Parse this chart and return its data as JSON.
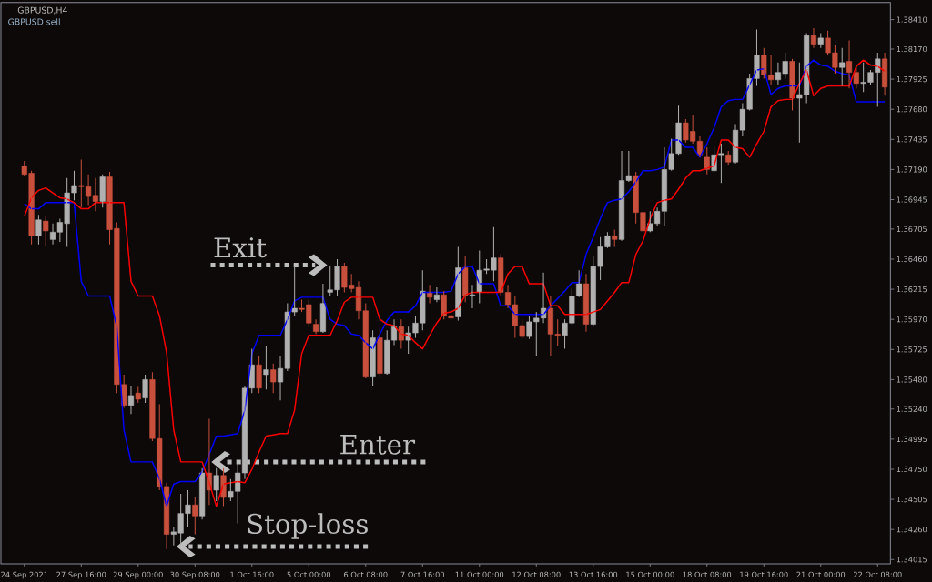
{
  "chart_data": {
    "type": "candlestick",
    "title": "GBPUSD,H4",
    "subtitle": "GBPUSD sell",
    "categories": [
      "24 Sep 2021",
      null,
      null,
      null,
      null,
      null,
      null,
      null,
      "27 Sep 16:00",
      null,
      null,
      null,
      null,
      null,
      null,
      null,
      "29 Sep 00:00",
      null,
      null,
      null,
      null,
      null,
      null,
      null,
      "30 Sep 08:00",
      null,
      null,
      null,
      null,
      null,
      null,
      null,
      "1 Oct 16:00",
      null,
      null,
      null,
      null,
      null,
      null,
      null,
      "5 Oct 00:00",
      null,
      null,
      null,
      null,
      null,
      null,
      null,
      "6 Oct 08:00",
      null,
      null,
      null,
      null,
      null,
      null,
      null,
      "7 Oct 16:00",
      null,
      null,
      null,
      null,
      null,
      null,
      null,
      "11 Oct 00:00",
      null,
      null,
      null,
      null,
      null,
      null,
      null,
      "12 Oct 08:00",
      null,
      null,
      null,
      null,
      null,
      null,
      null,
      "13 Oct 16:00",
      null,
      null,
      null,
      null,
      null,
      null,
      null,
      "15 Oct 00:00",
      null,
      null,
      null,
      null,
      null,
      null,
      null,
      "18 Oct 08:00",
      null,
      null,
      null,
      null,
      null,
      null,
      null,
      "19 Oct 16:00",
      null,
      null,
      null,
      null,
      null,
      null,
      null,
      "21 Oct 00:00",
      null,
      null,
      null,
      null,
      null,
      null,
      null,
      "22 Oct 08:00",
      null
    ],
    "ohlc": [
      [
        1.3722,
        1.3726,
        1.3714,
        1.3715
      ],
      [
        1.3716,
        1.3718,
        1.3658,
        1.3665
      ],
      [
        1.3665,
        1.3682,
        1.3658,
        1.3678
      ],
      [
        1.3677,
        1.3681,
        1.3657,
        1.3669
      ],
      [
        1.3662,
        1.3675,
        1.3658,
        1.3668
      ],
      [
        1.3668,
        1.3679,
        1.366,
        1.3676
      ],
      [
        1.3675,
        1.3712,
        1.3656,
        1.37
      ],
      [
        1.37,
        1.3718,
        1.3694,
        1.3706
      ],
      [
        1.3706,
        1.3727,
        1.3688,
        1.3705
      ],
      [
        1.3705,
        1.3715,
        1.369,
        1.3697
      ],
      [
        1.3698,
        1.3712,
        1.3685,
        1.3693
      ],
      [
        1.3693,
        1.3715,
        1.3688,
        1.3713
      ],
      [
        1.3713,
        1.3717,
        1.3658,
        1.367
      ],
      [
        1.3671,
        1.3676,
        1.3537,
        1.3544
      ],
      [
        1.3544,
        1.3552,
        1.3525,
        1.3527
      ],
      [
        1.3527,
        1.3543,
        1.352,
        1.3535
      ],
      [
        1.3537,
        1.3542,
        1.3529,
        1.3532
      ],
      [
        1.3533,
        1.3552,
        1.3529,
        1.3548
      ],
      [
        1.3548,
        1.3554,
        1.3498,
        1.35
      ],
      [
        1.35,
        1.3528,
        1.3458,
        1.3461
      ],
      [
        1.3461,
        1.3464,
        1.341,
        1.3422
      ],
      [
        1.3422,
        1.3428,
        1.3413,
        1.3424
      ],
      [
        1.3423,
        1.3455,
        1.3413,
        1.3439
      ],
      [
        1.3439,
        1.3458,
        1.3428,
        1.3446
      ],
      [
        1.3446,
        1.3452,
        1.3422,
        1.3437
      ],
      [
        1.3437,
        1.3476,
        1.3434,
        1.3472
      ],
      [
        1.3472,
        1.3516,
        1.3446,
        1.3458
      ],
      [
        1.3458,
        1.3476,
        1.3449,
        1.347
      ],
      [
        1.347,
        1.3476,
        1.3445,
        1.3452
      ],
      [
        1.3452,
        1.3467,
        1.3449,
        1.3457
      ],
      [
        1.3457,
        1.348,
        1.3431,
        1.3472
      ],
      [
        1.3472,
        1.3543,
        1.3467,
        1.3541
      ],
      [
        1.3541,
        1.3573,
        1.3537,
        1.356
      ],
      [
        1.356,
        1.3567,
        1.3537,
        1.3541
      ],
      [
        1.3552,
        1.3575,
        1.354,
        1.3556
      ],
      [
        1.3556,
        1.3561,
        1.3537,
        1.3546
      ],
      [
        1.3546,
        1.3567,
        1.3531,
        1.3557
      ],
      [
        1.3557,
        1.361,
        1.3555,
        1.3603
      ],
      [
        1.3603,
        1.364,
        1.36,
        1.3606
      ],
      [
        1.3606,
        1.3613,
        1.3603,
        1.3605
      ],
      [
        1.3609,
        1.3613,
        1.3591,
        1.3594
      ],
      [
        1.3593,
        1.3597,
        1.3585,
        1.3587
      ],
      [
        1.3587,
        1.3626,
        1.3586,
        1.361
      ],
      [
        1.3619,
        1.364,
        1.3616,
        1.3621
      ],
      [
        1.3621,
        1.3646,
        1.3616,
        1.364
      ],
      [
        1.364,
        1.3643,
        1.3619,
        1.3623
      ],
      [
        1.3625,
        1.3634,
        1.3619,
        1.3622
      ],
      [
        1.3623,
        1.3628,
        1.3597,
        1.3604
      ],
      [
        1.3604,
        1.361,
        1.3549,
        1.355
      ],
      [
        1.355,
        1.3588,
        1.3543,
        1.3582
      ],
      [
        1.3582,
        1.3591,
        1.3549,
        1.3553
      ],
      [
        1.3553,
        1.3588,
        1.3552,
        1.358
      ],
      [
        1.358,
        1.3597,
        1.3576,
        1.3591
      ],
      [
        1.3591,
        1.3597,
        1.3573,
        1.358
      ],
      [
        1.358,
        1.3591,
        1.3569,
        1.3586
      ],
      [
        1.3586,
        1.36,
        1.3582,
        1.3594
      ],
      [
        1.3594,
        1.3637,
        1.3588,
        1.362
      ],
      [
        1.3619,
        1.3625,
        1.361,
        1.3615
      ],
      [
        1.3613,
        1.3623,
        1.3611,
        1.3617
      ],
      [
        1.3617,
        1.362,
        1.3597,
        1.36
      ],
      [
        1.36,
        1.3616,
        1.3591,
        1.3598
      ],
      [
        1.3599,
        1.3656,
        1.3596,
        1.3639
      ],
      [
        1.3639,
        1.3649,
        1.3611,
        1.3616
      ],
      [
        1.3616,
        1.3625,
        1.3606,
        1.3617
      ],
      [
        1.3619,
        1.3653,
        1.361,
        1.3637
      ],
      [
        1.3637,
        1.3646,
        1.3634,
        1.3638
      ],
      [
        1.3637,
        1.3672,
        1.3628,
        1.3647
      ],
      [
        1.3647,
        1.365,
        1.3616,
        1.3619
      ],
      [
        1.3619,
        1.3625,
        1.3606,
        1.3609
      ],
      [
        1.3609,
        1.3616,
        1.3582,
        1.3592
      ],
      [
        1.3592,
        1.3597,
        1.3581,
        1.3583
      ],
      [
        1.3583,
        1.36,
        1.3581,
        1.3595
      ],
      [
        1.3595,
        1.3603,
        1.3567,
        1.3598
      ],
      [
        1.3598,
        1.3635,
        1.3594,
        1.3606
      ],
      [
        1.3606,
        1.3616,
        1.3567,
        1.3585
      ],
      [
        1.3585,
        1.3597,
        1.3575,
        1.3584
      ],
      [
        1.3584,
        1.3597,
        1.3573,
        1.3594
      ],
      [
        1.3594,
        1.3622,
        1.3593,
        1.3616
      ],
      [
        1.3616,
        1.3637,
        1.3615,
        1.3626
      ],
      [
        1.3626,
        1.3634,
        1.3587,
        1.3593
      ],
      [
        1.3593,
        1.3649,
        1.3591,
        1.364
      ],
      [
        1.364,
        1.3664,
        1.3629,
        1.3656
      ],
      [
        1.3656,
        1.3668,
        1.3655,
        1.3665
      ],
      [
        1.3665,
        1.367,
        1.3656,
        1.3662
      ],
      [
        1.3662,
        1.3734,
        1.3661,
        1.371
      ],
      [
        1.371,
        1.3734,
        1.3709,
        1.3714
      ],
      [
        1.3714,
        1.3717,
        1.3675,
        1.3684
      ],
      [
        1.3684,
        1.3687,
        1.3667,
        1.3669
      ],
      [
        1.3669,
        1.3685,
        1.3668,
        1.3675
      ],
      [
        1.3675,
        1.3688,
        1.3673,
        1.3685
      ],
      [
        1.3685,
        1.3737,
        1.3673,
        1.3719
      ],
      [
        1.3719,
        1.3744,
        1.3718,
        1.3732
      ],
      [
        1.3732,
        1.3771,
        1.3731,
        1.3757
      ],
      [
        1.3757,
        1.376,
        1.3741,
        1.3743
      ],
      [
        1.375,
        1.3763,
        1.374,
        1.3742
      ],
      [
        1.3742,
        1.3746,
        1.3729,
        1.3731
      ],
      [
        1.3729,
        1.3737,
        1.3715,
        1.3719
      ],
      [
        1.3718,
        1.3738,
        1.3717,
        1.3731
      ],
      [
        1.3731,
        1.374,
        1.3708,
        1.3732
      ],
      [
        1.3731,
        1.3734,
        1.3723,
        1.3725
      ],
      [
        1.3725,
        1.3756,
        1.3724,
        1.3751
      ],
      [
        1.3751,
        1.3773,
        1.3746,
        1.3768
      ],
      [
        1.3768,
        1.3797,
        1.3767,
        1.3793
      ],
      [
        1.3793,
        1.3833,
        1.3787,
        1.3812
      ],
      [
        1.3812,
        1.3818,
        1.3793,
        1.3796
      ],
      [
        1.3796,
        1.3812,
        1.3788,
        1.3792
      ],
      [
        1.3792,
        1.3806,
        1.3788,
        1.3798
      ],
      [
        1.3797,
        1.3814,
        1.3793,
        1.3807
      ],
      [
        1.3807,
        1.3809,
        1.3767,
        1.3777
      ],
      [
        1.3777,
        1.3806,
        1.3741,
        1.378
      ],
      [
        1.378,
        1.383,
        1.3773,
        1.3828
      ],
      [
        1.3828,
        1.3834,
        1.3818,
        1.3821
      ],
      [
        1.3821,
        1.383,
        1.3818,
        1.3826
      ],
      [
        1.3826,
        1.3832,
        1.3812,
        1.3814
      ],
      [
        1.3814,
        1.382,
        1.3797,
        1.3802
      ],
      [
        1.3802,
        1.3818,
        1.3787,
        1.3806
      ],
      [
        1.3807,
        1.3824,
        1.3785,
        1.3798
      ],
      [
        1.3798,
        1.3803,
        1.3785,
        1.3789
      ],
      [
        1.3789,
        1.3806,
        1.3782,
        1.379
      ],
      [
        1.379,
        1.38,
        1.3788,
        1.3798
      ],
      [
        1.3798,
        1.3814,
        1.377,
        1.3809
      ],
      [
        1.3809,
        1.3814,
        1.3779,
        1.3786
      ]
    ],
    "colors": [
      "#c8503c",
      "#c8503c",
      "#b0b0b0",
      "#c8503c",
      "#b0b0b0",
      "#b0b0b0",
      "#b0b0b0",
      "#b0b0b0",
      "#c8503c",
      "#c8503c",
      "#c8503c",
      "#b0b0b0",
      "#c8503c",
      "#c8503c",
      "#c8503c",
      "#b0b0b0",
      "#c8503c",
      "#b0b0b0",
      "#c8503c",
      "#c8503c",
      "#c8503c",
      "#b0b0b0",
      "#b0b0b0",
      "#b0b0b0",
      "#c8503c",
      "#b0b0b0",
      "#c8503c",
      "#b0b0b0",
      "#c8503c",
      "#b0b0b0",
      "#b0b0b0",
      "#b0b0b0",
      "#b0b0b0",
      "#c8503c",
      "#b0b0b0",
      "#c8503c",
      "#b0b0b0",
      "#b0b0b0",
      "#b0b0b0",
      "#c8503c",
      "#c8503c",
      "#c8503c",
      "#b0b0b0",
      "#b0b0b0",
      "#b0b0b0",
      "#c8503c",
      "#c8503c",
      "#c8503c",
      "#c8503c",
      "#b0b0b0",
      "#c8503c",
      "#b0b0b0",
      "#b0b0b0",
      "#c8503c",
      "#b0b0b0",
      "#b0b0b0",
      "#b0b0b0",
      "#c8503c",
      "#b0b0b0",
      "#c8503c",
      "#c8503c",
      "#b0b0b0",
      "#c8503c",
      "#b0b0b0",
      "#b0b0b0",
      "#b0b0b0",
      "#b0b0b0",
      "#c8503c",
      "#c8503c",
      "#c8503c",
      "#c8503c",
      "#b0b0b0",
      "#b0b0b0",
      "#b0b0b0",
      "#c8503c",
      "#c8503c",
      "#b0b0b0",
      "#b0b0b0",
      "#b0b0b0",
      "#c8503c",
      "#b0b0b0",
      "#b0b0b0",
      "#b0b0b0",
      "#c8503c",
      "#b0b0b0",
      "#b0b0b0",
      "#c8503c",
      "#c8503c",
      "#b0b0b0",
      "#b0b0b0",
      "#b0b0b0",
      "#b0b0b0",
      "#b0b0b0",
      "#c8503c",
      "#c8503c",
      "#c8503c",
      "#c8503c",
      "#b0b0b0",
      "#b0b0b0",
      "#c8503c",
      "#b0b0b0",
      "#b0b0b0",
      "#b0b0b0",
      "#b0b0b0",
      "#c8503c",
      "#c8503c",
      "#b0b0b0",
      "#b0b0b0",
      "#c8503c",
      "#b0b0b0",
      "#b0b0b0",
      "#c8503c",
      "#b0b0b0",
      "#c8503c",
      "#c8503c",
      "#b0b0b0",
      "#c8503c",
      "#c8503c",
      "#b0b0b0",
      "#b0b0b0",
      "#b0b0b0",
      "#c8503c"
    ],
    "series": [
      {
        "type": "line",
        "color": "#0000ff",
        "values": [
          1.3691,
          1.3687,
          1.3687,
          1.3692,
          1.3692,
          1.3692,
          1.3692,
          1.3692,
          1.3628,
          1.3616,
          1.3616,
          1.3616,
          1.3616,
          1.3591,
          1.3507,
          1.3481,
          1.3481,
          1.3481,
          1.3481,
          1.3467,
          1.3445,
          1.3463,
          1.3465,
          1.3465,
          1.3465,
          1.3473,
          1.3487,
          1.3502,
          1.3502,
          1.3503,
          1.3504,
          1.3523,
          1.3569,
          1.3584,
          1.3584,
          1.3584,
          1.3584,
          1.3597,
          1.3612,
          1.3615,
          1.3615,
          1.3615,
          1.3615,
          1.3597,
          1.3593,
          1.3592,
          1.3585,
          1.3584,
          1.3578,
          1.3573,
          1.3585,
          1.3596,
          1.3603,
          1.3603,
          1.3603,
          1.3608,
          1.3619,
          1.3619,
          1.3619,
          1.3619,
          1.362,
          1.3634,
          1.364,
          1.364,
          1.3626,
          1.3626,
          1.3626,
          1.3608,
          1.3608,
          1.3601,
          1.3601,
          1.3601,
          1.3601,
          1.3601,
          1.3608,
          1.3614,
          1.362,
          1.3627,
          1.3627,
          1.365,
          1.3664,
          1.3679,
          1.3692,
          1.3694,
          1.3695,
          1.3701,
          1.3709,
          1.3718,
          1.3718,
          1.3719,
          1.3721,
          1.3743,
          1.3743,
          1.3737,
          1.3737,
          1.3729,
          1.374,
          1.3753,
          1.377,
          1.3775,
          1.3776,
          1.3776,
          1.3788,
          1.38,
          1.3801,
          1.378,
          1.3785,
          1.3787,
          1.3787,
          1.3787,
          1.3803,
          1.3808,
          1.3804,
          1.3803,
          1.3799,
          1.3797,
          1.3796,
          1.3774,
          1.3774,
          1.3774,
          1.3774,
          1.3774
        ]
      },
      {
        "type": "line",
        "color": "#ff0000",
        "values": [
          1.3681,
          1.3696,
          1.3702,
          1.3704,
          1.37,
          1.3696,
          1.3695,
          1.3692,
          1.3687,
          1.3687,
          1.3692,
          1.3692,
          1.3692,
          1.3692,
          1.3692,
          1.3628,
          1.3616,
          1.3616,
          1.3616,
          1.36,
          1.357,
          1.3507,
          1.3481,
          1.3481,
          1.3481,
          1.3481,
          1.3464,
          1.3445,
          1.3463,
          1.3464,
          1.3465,
          1.3464,
          1.3475,
          1.3489,
          1.3502,
          1.3503,
          1.3504,
          1.3504,
          1.3523,
          1.3569,
          1.3584,
          1.3584,
          1.3584,
          1.3584,
          1.3596,
          1.3611,
          1.3615,
          1.3615,
          1.3615,
          1.3615,
          1.3597,
          1.3593,
          1.3592,
          1.3585,
          1.3584,
          1.3578,
          1.3573,
          1.3584,
          1.3594,
          1.3602,
          1.3603,
          1.3606,
          1.3617,
          1.3619,
          1.3619,
          1.3619,
          1.3619,
          1.3619,
          1.3634,
          1.364,
          1.364,
          1.3626,
          1.3626,
          1.3626,
          1.3608,
          1.3608,
          1.3601,
          1.3601,
          1.3601,
          1.3601,
          1.3603,
          1.3605,
          1.3612,
          1.3619,
          1.3627,
          1.3627,
          1.365,
          1.3661,
          1.3679,
          1.3692,
          1.3694,
          1.3695,
          1.3703,
          1.3712,
          1.3718,
          1.3718,
          1.372,
          1.3722,
          1.3743,
          1.3743,
          1.3737,
          1.3736,
          1.3729,
          1.374,
          1.375,
          1.377,
          1.3775,
          1.3776,
          1.3776,
          1.3789,
          1.38,
          1.3779,
          1.3785,
          1.3787,
          1.3787,
          1.3787,
          1.3787,
          1.3803,
          1.3808,
          1.3804,
          1.3803,
          1.3799
        ]
      }
    ],
    "ylim": [
      1.3398,
      1.3855
    ],
    "yticks": [
      {
        "value": 1.3841,
        "label": "1.38410"
      },
      {
        "value": 1.3817,
        "label": "1.38170"
      },
      {
        "value": 1.37925,
        "label": "1.37925"
      },
      {
        "value": 1.3768,
        "label": "1.37680"
      },
      {
        "value": 1.37435,
        "label": "1.37435"
      },
      {
        "value": 1.3719,
        "label": "1.37190"
      },
      {
        "value": 1.36945,
        "label": "1.36945"
      },
      {
        "value": 1.36705,
        "label": "1.36705"
      },
      {
        "value": 1.3646,
        "label": "1.36460"
      },
      {
        "value": 1.36215,
        "label": "1.36215"
      },
      {
        "value": 1.3597,
        "label": "1.35970"
      },
      {
        "value": 1.35725,
        "label": "1.35725"
      },
      {
        "value": 1.3548,
        "label": "1.35480"
      },
      {
        "value": 1.3524,
        "label": "1.35240"
      },
      {
        "value": 1.34995,
        "label": "1.34995"
      },
      {
        "value": 1.3475,
        "label": "1.34750"
      },
      {
        "value": 1.34505,
        "label": "1.34505"
      },
      {
        "value": 1.3426,
        "label": "1.34260"
      },
      {
        "value": 1.34015,
        "label": "1.34015"
      }
    ],
    "annotations": [
      "Exit",
      "Enter",
      "Stop-loss"
    ]
  }
}
